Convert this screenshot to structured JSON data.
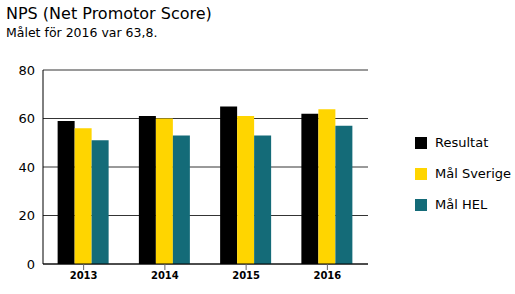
{
  "chart_data": {
    "type": "bar",
    "title": "NPS (Net Promotor Score)",
    "subtitle": "Målet för 2016 var 63,8.",
    "categories": [
      "2013",
      "2014",
      "2015",
      "2016"
    ],
    "series": [
      {
        "name": "Resultat",
        "color": "#000000",
        "values": [
          59,
          61,
          65,
          62
        ]
      },
      {
        "name": "Mål Sverige",
        "color": "#ffd500",
        "values": [
          56,
          60,
          61,
          63.8
        ]
      },
      {
        "name": "Mål HEL",
        "color": "#146b78",
        "values": [
          51,
          53,
          53,
          57
        ]
      }
    ],
    "ylim": [
      0,
      80
    ],
    "yticks": [
      0,
      20,
      40,
      60,
      80
    ],
    "grid": true,
    "legend": "right"
  }
}
